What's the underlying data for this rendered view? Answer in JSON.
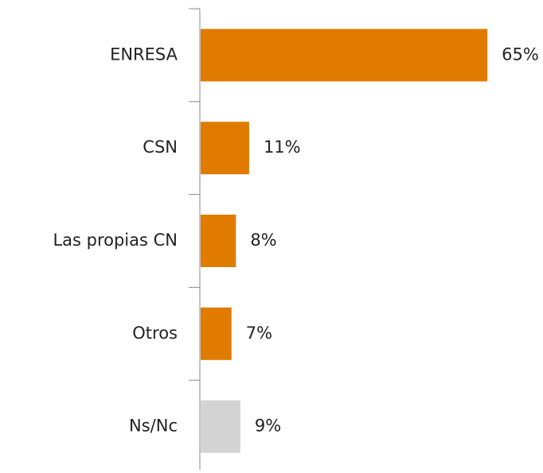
{
  "chart_data": {
    "type": "hbar",
    "categories": [
      "ENRESA",
      "CSN",
      "Las propias CN",
      "Otros",
      "Ns/Nc"
    ],
    "values": [
      65,
      11,
      8,
      7,
      9
    ],
    "value_labels": [
      "65%",
      "11%",
      "8%",
      "7%",
      "9%"
    ],
    "colors": [
      "#e07b00",
      "#e07b00",
      "#e07b00",
      "#e07b00",
      "#d3d3d3"
    ]
  }
}
